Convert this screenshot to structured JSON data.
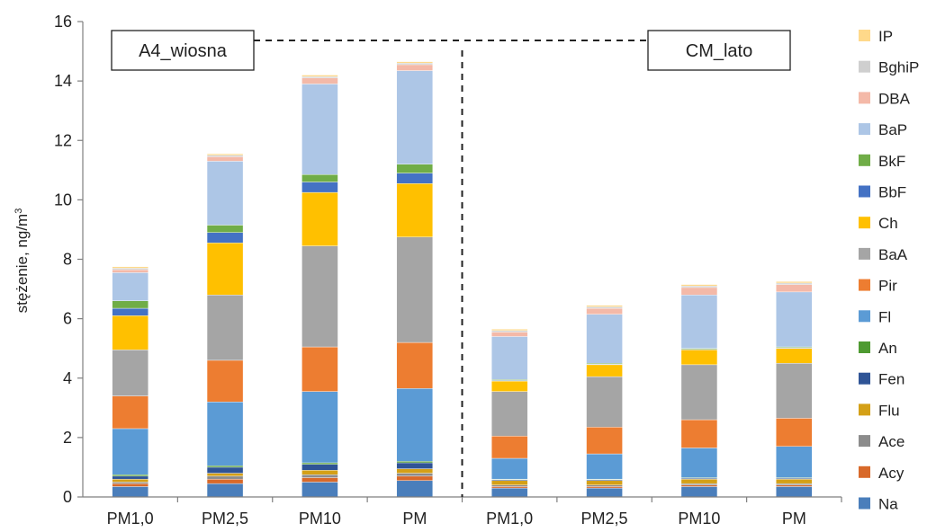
{
  "chart_data": {
    "type": "bar",
    "stacked": true,
    "ylabel": "stężenie, ng/m",
    "ylabel_superscript": "3",
    "ylim": [
      0,
      16
    ],
    "yticks": [
      "0",
      "2",
      "4",
      "6",
      "8",
      "10",
      "12",
      "14",
      "16"
    ],
    "categories": [
      "PM1,0",
      "PM2,5",
      "PM10",
      "PM",
      "PM1,0",
      "PM2,5",
      "PM10",
      "PM"
    ],
    "groups": [
      {
        "label": "A4_wiosna",
        "categories": [
          0,
          1,
          2,
          3
        ]
      },
      {
        "label": "CM_lato",
        "categories": [
          4,
          5,
          6,
          7
        ]
      }
    ],
    "legend_position": "right",
    "grid": false,
    "series": [
      {
        "name": "Na",
        "color": "#4a7ebb",
        "values": [
          0.35,
          0.45,
          0.5,
          0.55,
          0.3,
          0.3,
          0.35,
          0.35
        ]
      },
      {
        "name": "Acy",
        "color": "#d8692a",
        "values": [
          0.1,
          0.15,
          0.15,
          0.15,
          0.05,
          0.05,
          0.05,
          0.05
        ]
      },
      {
        "name": "Ace",
        "color": "#8c8c8c",
        "values": [
          0.05,
          0.1,
          0.1,
          0.1,
          0.05,
          0.05,
          0.05,
          0.05
        ]
      },
      {
        "name": "Flu",
        "color": "#d4a017",
        "values": [
          0.1,
          0.1,
          0.15,
          0.15,
          0.15,
          0.15,
          0.15,
          0.15
        ]
      },
      {
        "name": "Fen",
        "color": "#2f5496",
        "values": [
          0.1,
          0.2,
          0.2,
          0.2,
          0.03,
          0.03,
          0.03,
          0.03
        ]
      },
      {
        "name": "An",
        "color": "#4e9a31",
        "values": [
          0.05,
          0.05,
          0.05,
          0.05,
          0.02,
          0.02,
          0.02,
          0.02
        ]
      },
      {
        "name": "Fl",
        "color": "#5b9bd5",
        "values": [
          1.55,
          2.15,
          2.4,
          2.45,
          0.7,
          0.85,
          1.0,
          1.05
        ]
      },
      {
        "name": "Pir",
        "color": "#ed7d31",
        "values": [
          1.1,
          1.4,
          1.5,
          1.55,
          0.75,
          0.9,
          0.95,
          0.95
        ]
      },
      {
        "name": "BaA",
        "color": "#a5a5a5",
        "values": [
          1.55,
          2.2,
          3.4,
          3.55,
          1.5,
          1.7,
          1.85,
          1.85
        ]
      },
      {
        "name": "Ch",
        "color": "#ffc000",
        "values": [
          1.15,
          1.75,
          1.8,
          1.8,
          0.35,
          0.4,
          0.5,
          0.5
        ]
      },
      {
        "name": "BbF",
        "color": "#4472c4",
        "values": [
          0.25,
          0.35,
          0.35,
          0.35,
          0.02,
          0.02,
          0.02,
          0.02
        ]
      },
      {
        "name": "BkF",
        "color": "#70ad47",
        "values": [
          0.25,
          0.25,
          0.25,
          0.3,
          0.03,
          0.03,
          0.03,
          0.03
        ]
      },
      {
        "name": "BaP",
        "color": "#adc6e6",
        "values": [
          0.95,
          2.15,
          3.05,
          3.15,
          1.45,
          1.65,
          1.8,
          1.85
        ]
      },
      {
        "name": "DBA",
        "color": "#f4b9a8",
        "values": [
          0.1,
          0.15,
          0.2,
          0.2,
          0.15,
          0.2,
          0.25,
          0.25
        ]
      },
      {
        "name": "BghiP",
        "color": "#cfcfcf",
        "values": [
          0.05,
          0.05,
          0.05,
          0.05,
          0.05,
          0.05,
          0.05,
          0.05
        ]
      },
      {
        "name": "IP",
        "color": "#ffd98a",
        "values": [
          0.05,
          0.05,
          0.05,
          0.05,
          0.05,
          0.05,
          0.05,
          0.05
        ]
      }
    ]
  }
}
